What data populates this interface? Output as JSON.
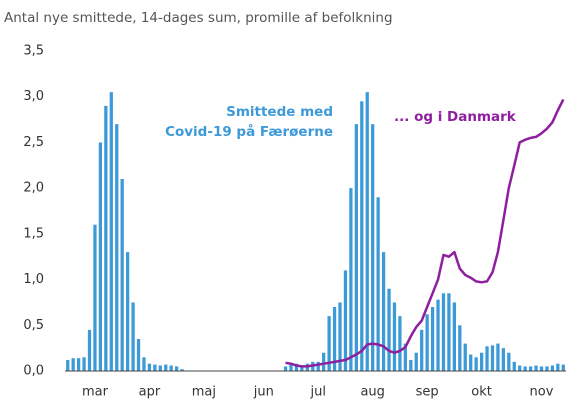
{
  "chart_data": {
    "type": "bar_line",
    "title": "Antal nye smittede, 14-dages sum, promille af befolkning",
    "annotations": [
      "Smittede med",
      "Covid-19 på Færøerne",
      "... og i Danmark"
    ],
    "categories": [
      null,
      null,
      null,
      null,
      null,
      "mar",
      null,
      null,
      null,
      null,
      null,
      null,
      null,
      null,
      null,
      "apr",
      null,
      null,
      null,
      null,
      null,
      null,
      null,
      null,
      null,
      "maj",
      null,
      null,
      null,
      null,
      null,
      null,
      null,
      null,
      null,
      null,
      "jun",
      null,
      null,
      null,
      null,
      null,
      null,
      null,
      null,
      null,
      "jul",
      null,
      null,
      null,
      null,
      null,
      null,
      null,
      null,
      null,
      "aug",
      null,
      null,
      null,
      null,
      null,
      null,
      null,
      null,
      null,
      "sep",
      null,
      null,
      null,
      null,
      null,
      null,
      null,
      null,
      null,
      "okt",
      null,
      null,
      null,
      null,
      null,
      null,
      null,
      null,
      null,
      null,
      "nov",
      null,
      null,
      null,
      null
    ],
    "series": [
      {
        "type": "bar",
        "color": "#3d9ad8",
        "values": [
          0.12,
          0.14,
          0.14,
          0.15,
          0.45,
          1.6,
          2.5,
          2.9,
          3.05,
          2.7,
          2.1,
          1.3,
          0.75,
          0.35,
          0.15,
          0.08,
          0.07,
          0.06,
          0.07,
          0.06,
          0.05,
          0.02,
          0,
          0,
          0,
          0,
          0,
          0,
          0,
          0,
          0,
          0,
          0,
          0,
          0,
          0,
          0,
          0,
          0,
          0,
          0.05,
          0.07,
          0.08,
          0.06,
          0.08,
          0.1,
          0.1,
          0.2,
          0.6,
          0.7,
          0.75,
          1.1,
          2.0,
          2.7,
          2.95,
          3.05,
          2.7,
          1.9,
          1.3,
          0.9,
          0.75,
          0.6,
          0.3,
          0.12,
          0.2,
          0.45,
          0.62,
          0.7,
          0.78,
          0.85,
          0.85,
          0.75,
          0.5,
          0.3,
          0.18,
          0.15,
          0.2,
          0.27,
          0.28,
          0.3,
          0.25,
          0.2,
          0.1,
          0.06,
          0.05,
          0.05,
          0.06,
          0.05,
          0.05,
          0.06,
          0.08,
          0.07
        ]
      },
      {
        "type": "line",
        "color": "#8e1f9e",
        "values": [
          null,
          null,
          null,
          null,
          null,
          null,
          null,
          null,
          null,
          null,
          null,
          null,
          null,
          null,
          null,
          null,
          null,
          null,
          null,
          null,
          null,
          null,
          null,
          null,
          null,
          null,
          null,
          null,
          null,
          null,
          null,
          null,
          null,
          null,
          null,
          null,
          null,
          null,
          null,
          null,
          0.09,
          0.08,
          0.06,
          0.05,
          0.05,
          0.06,
          0.07,
          0.08,
          0.09,
          0.1,
          0.11,
          0.12,
          0.15,
          0.18,
          0.22,
          0.29,
          0.3,
          0.29,
          0.27,
          0.22,
          0.2,
          0.22,
          0.26,
          0.38,
          0.48,
          0.55,
          0.7,
          0.85,
          1.0,
          1.27,
          1.25,
          1.3,
          1.12,
          1.05,
          1.02,
          0.98,
          0.97,
          0.98,
          1.08,
          1.3,
          1.65,
          2.0,
          2.25,
          2.5,
          2.53,
          2.55,
          2.56,
          2.6,
          2.65,
          2.72,
          2.85,
          2.97
        ]
      }
    ],
    "ylim": [
      0,
      3.5
    ],
    "yticks": [
      {
        "value": 0,
        "label": "0,0"
      },
      {
        "value": 0.5,
        "label": "0,5"
      },
      {
        "value": 1,
        "label": "1,0"
      },
      {
        "value": 1.5,
        "label": "1,5"
      },
      {
        "value": 2,
        "label": "2,0"
      },
      {
        "value": 2.5,
        "label": "2,5"
      },
      {
        "value": 3,
        "label": "3,0"
      },
      {
        "value": 3.5,
        "label": "3,5"
      }
    ],
    "grid": false
  }
}
